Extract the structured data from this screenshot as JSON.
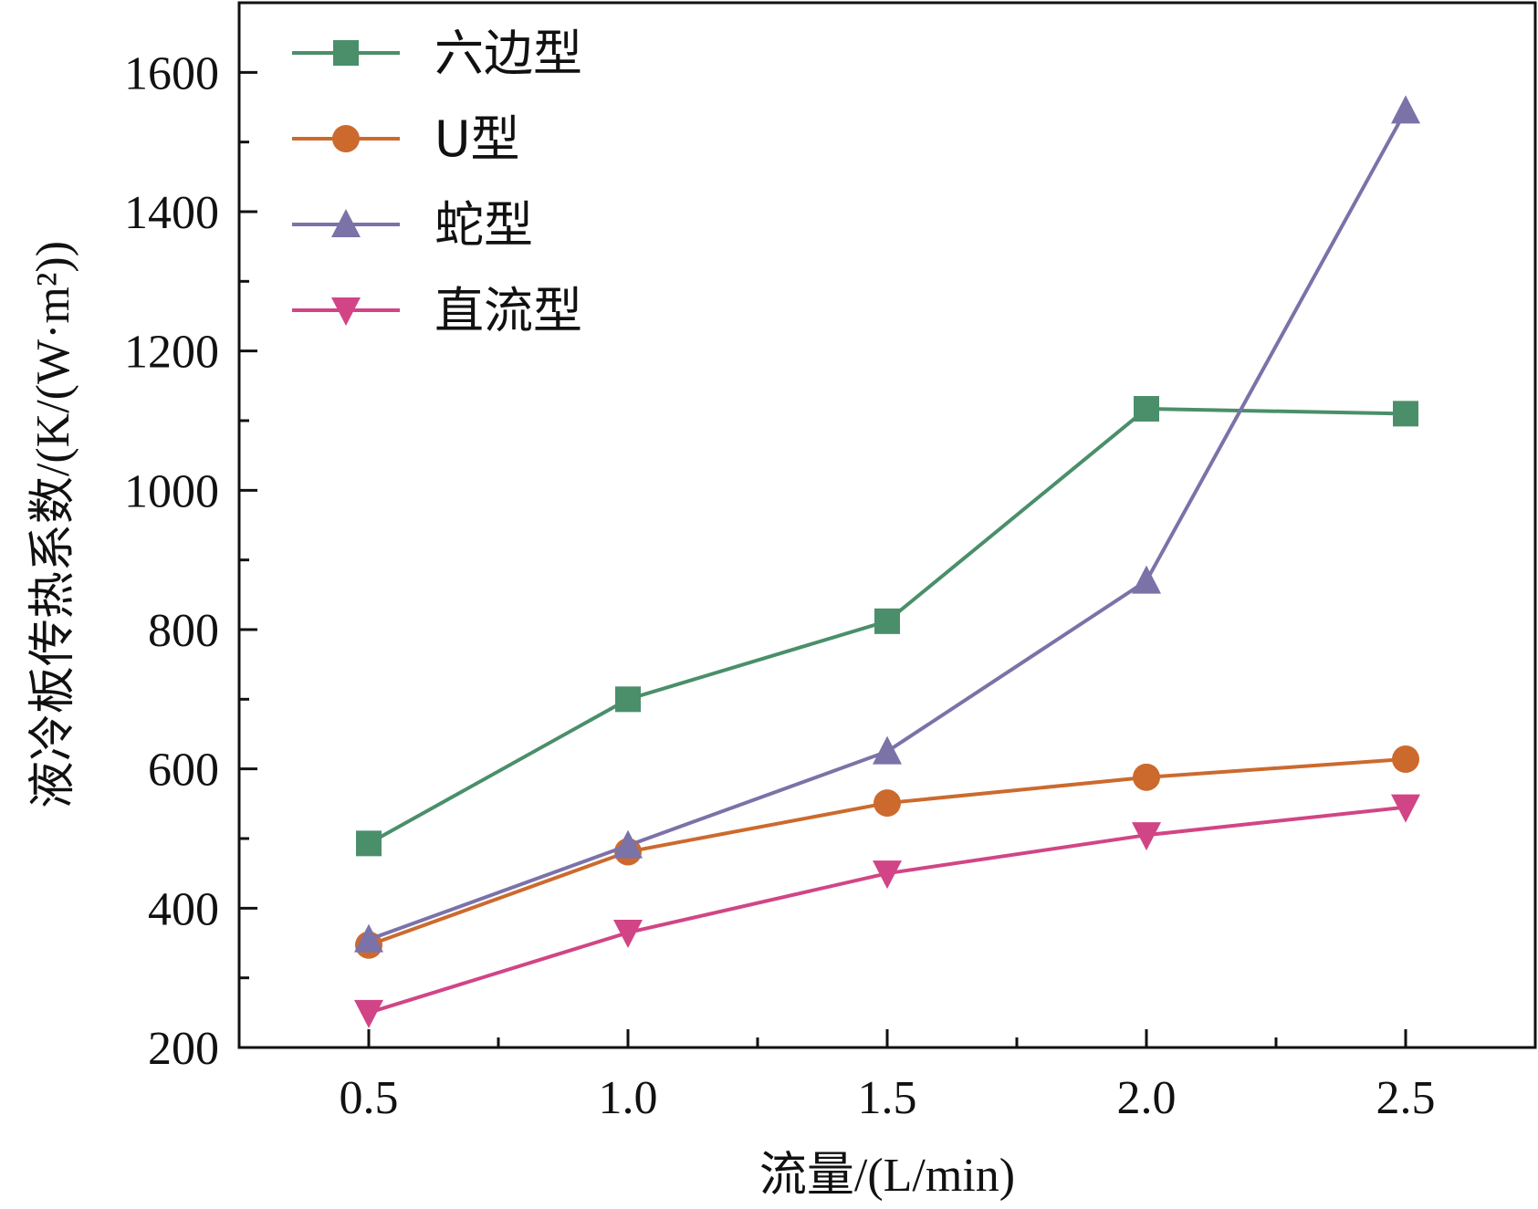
{
  "chart_data": {
    "type": "line",
    "xlabel": "流量/(L/min)",
    "ylabel": "液冷板传热系数/(K/(W·m²))",
    "xlim": [
      0.25,
      2.75
    ],
    "ylim": [
      200,
      1700
    ],
    "x": [
      0.5,
      1.0,
      1.5,
      2.0,
      2.5
    ],
    "x_ticks": [
      "0.5",
      "1.0",
      "1.5",
      "2.0",
      "2.5"
    ],
    "y_ticks": [
      "200",
      "400",
      "600",
      "800",
      "1000",
      "1200",
      "1400",
      "1600"
    ],
    "grid": false,
    "legend_position": "top-left",
    "series": [
      {
        "name": "六边型",
        "marker": "square",
        "color": "#4a8f6a",
        "values": [
          493,
          700,
          812,
          1117,
          1110
        ]
      },
      {
        "name": "U型",
        "marker": "circle",
        "color": "#cc6a2e",
        "values": [
          347,
          481,
          551,
          588,
          614
        ]
      },
      {
        "name": "蛇型",
        "marker": "triangle-up",
        "color": "#7b72a8",
        "values": [
          355,
          490,
          625,
          870,
          1545
        ]
      },
      {
        "name": "直流型",
        "marker": "triangle-down",
        "color": "#d14586",
        "values": [
          250,
          365,
          450,
          505,
          545
        ]
      }
    ]
  }
}
